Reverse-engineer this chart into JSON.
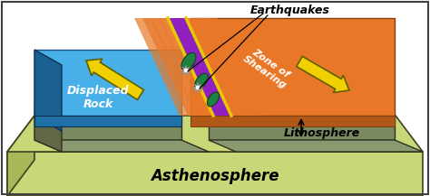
{
  "background_color": "#ffffff",
  "asthenosphere_color": "#c8d878",
  "asthenosphere_side": "#a8b858",
  "litho_side_color": "#7a8a60",
  "litho_front_color": "#8a9a70",
  "blue_plate_top": "#48b0e8",
  "blue_plate_side_dark": "#2060a0",
  "orange_plate_top": "#e87828",
  "orange_plate_side": "#c05818",
  "fault_purple": "#9020c0",
  "fault_yellow": "#e8c800",
  "fault_orange_stripe": "#e87828",
  "green_feature": "#208040",
  "arrow_yellow": "#f0d000",
  "arrow_edge": "#606000",
  "white": "#ffffff",
  "black": "#000000",
  "gray_dark": "#505050",
  "label_asthen": "Asthenosphere",
  "label_displaced": "Displaced\nRock",
  "label_zone": "Zone of\nShearing",
  "label_litho": "Lithosphere",
  "label_quakes": "Earthquakes"
}
